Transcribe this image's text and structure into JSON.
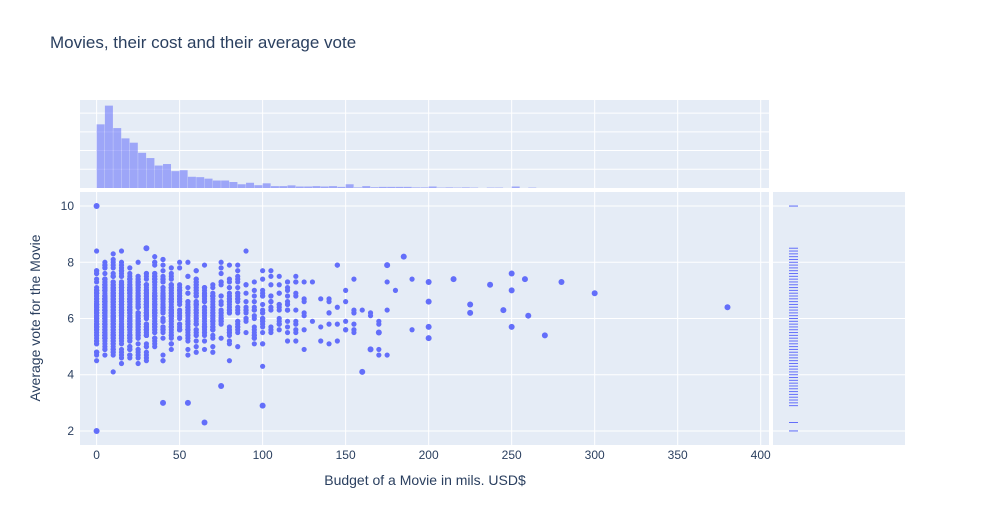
{
  "title": "Movies, their cost and their average vote",
  "colors": {
    "marker": "#636efa",
    "plot_bg": "#e5ecf6",
    "grid": "#ffffff",
    "text": "#2a3f5f"
  },
  "chart_data": {
    "type": "scatter",
    "title": "Movies, their cost and their average vote",
    "xlabel": "Budget of a Movie in mils. USD$",
    "ylabel": "Average vote for the Movie",
    "xlim": [
      -10,
      405
    ],
    "ylim": [
      1.5,
      10.5
    ],
    "x_ticks": [
      0,
      50,
      100,
      150,
      200,
      250,
      300,
      350,
      400
    ],
    "y_ticks": [
      2,
      4,
      6,
      8,
      10
    ],
    "grid": true,
    "legend": "none",
    "marginal_x": "histogram",
    "marginal_y": "rug",
    "notable_points": [
      {
        "x": 0,
        "y": 10.0
      },
      {
        "x": 0,
        "y": 2.0
      },
      {
        "x": 380,
        "y": 6.4
      },
      {
        "x": 300,
        "y": 6.9
      },
      {
        "x": 280,
        "y": 7.3
      },
      {
        "x": 270,
        "y": 5.4
      },
      {
        "x": 260,
        "y": 6.1
      },
      {
        "x": 258,
        "y": 7.4
      },
      {
        "x": 250,
        "y": 7.6
      },
      {
        "x": 250,
        "y": 7.0
      },
      {
        "x": 250,
        "y": 5.7
      },
      {
        "x": 245,
        "y": 6.3
      },
      {
        "x": 237,
        "y": 7.2
      },
      {
        "x": 225,
        "y": 6.5
      },
      {
        "x": 225,
        "y": 6.2
      },
      {
        "x": 215,
        "y": 7.4
      },
      {
        "x": 200,
        "y": 7.3
      },
      {
        "x": 200,
        "y": 6.6
      },
      {
        "x": 200,
        "y": 5.7
      },
      {
        "x": 200,
        "y": 5.3
      },
      {
        "x": 185,
        "y": 8.2
      },
      {
        "x": 175,
        "y": 7.9
      },
      {
        "x": 170,
        "y": 5.5
      },
      {
        "x": 165,
        "y": 4.9
      },
      {
        "x": 160,
        "y": 4.1
      },
      {
        "x": 100,
        "y": 2.9
      },
      {
        "x": 65,
        "y": 2.3
      },
      {
        "x": 75,
        "y": 3.6
      },
      {
        "x": 55,
        "y": 3.0
      },
      {
        "x": 40,
        "y": 3.0
      },
      {
        "x": 30,
        "y": 8.5
      }
    ],
    "histogram_x": {
      "bin_width": 5,
      "bin_starts": [
        0,
        5,
        10,
        15,
        20,
        25,
        30,
        35,
        40,
        45,
        50,
        55,
        60,
        65,
        70,
        75,
        80,
        85,
        90,
        95,
        100,
        105,
        110,
        115,
        120,
        125,
        130,
        135,
        140,
        145,
        150,
        155,
        160,
        165,
        170,
        175,
        180,
        185,
        190,
        195,
        200,
        205,
        210,
        215,
        220,
        225,
        230,
        235,
        240,
        245,
        250,
        255,
        260
      ],
      "counts": [
        340,
        440,
        320,
        265,
        242,
        188,
        160,
        120,
        128,
        90,
        95,
        60,
        58,
        50,
        40,
        40,
        32,
        20,
        28,
        15,
        25,
        10,
        10,
        14,
        8,
        8,
        10,
        8,
        10,
        6,
        20,
        3,
        10,
        4,
        6,
        6,
        6,
        6,
        3,
        3,
        8,
        2,
        3,
        2,
        3,
        2,
        0,
        2,
        2,
        0,
        8,
        0,
        2
      ]
    },
    "rug_y": [
      10.0,
      8.5,
      8.4,
      8.3,
      8.2,
      8.1,
      8.0,
      7.9,
      7.8,
      7.7,
      7.6,
      7.5,
      7.4,
      7.3,
      7.2,
      7.1,
      7.0,
      6.9,
      6.8,
      6.7,
      6.6,
      6.5,
      6.4,
      6.3,
      6.2,
      6.1,
      6.0,
      5.9,
      5.8,
      5.7,
      5.6,
      5.5,
      5.4,
      5.3,
      5.2,
      5.1,
      5.0,
      4.9,
      4.8,
      4.7,
      4.6,
      4.5,
      4.4,
      4.3,
      4.2,
      4.1,
      4.0,
      3.9,
      3.8,
      3.7,
      3.6,
      3.5,
      3.4,
      3.3,
      3.2,
      3.1,
      3.0,
      2.9,
      2.3,
      2.0
    ]
  }
}
